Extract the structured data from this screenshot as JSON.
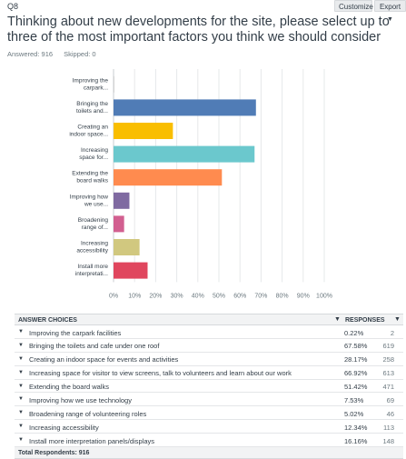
{
  "header": {
    "question_number": "Q8",
    "customize_label": "Customize",
    "export_label": "Export",
    "title": "Thinking about new developments for the site, please select up to three of the most important factors you think we should consider",
    "answered": "Answered: 916",
    "skipped": "Skipped: 0"
  },
  "chart_data": {
    "type": "bar",
    "orientation": "horizontal",
    "categories": [
      [
        "Improving the",
        "carpark..."
      ],
      [
        "Bringing the",
        "toilets and..."
      ],
      [
        "Creating an",
        "indoor space..."
      ],
      [
        "Increasing",
        "space for..."
      ],
      [
        "Extending the",
        "board walks"
      ],
      [
        "Improving how",
        "we use..."
      ],
      [
        "Broadening",
        "range of..."
      ],
      [
        "Increasing",
        "accessibility"
      ],
      [
        "Install more",
        "interpretati..."
      ]
    ],
    "values": [
      0.22,
      67.58,
      28.17,
      66.92,
      51.42,
      7.53,
      5.02,
      12.34,
      16.16
    ],
    "colors": [
      "#b8b8b8",
      "#507cb6",
      "#f9be00",
      "#6bc8cd",
      "#ff8b4f",
      "#7f6aa1",
      "#d25f90",
      "#d1c87f",
      "#e0465e"
    ],
    "xlim": [
      0,
      100
    ],
    "tick_labels": [
      "0%",
      "10%",
      "20%",
      "30%",
      "40%",
      "50%",
      "60%",
      "70%",
      "80%",
      "90%",
      "100%"
    ],
    "grid": true
  },
  "table": {
    "col_answer": "ANSWER CHOICES",
    "col_responses": "RESPONSES",
    "rows": [
      {
        "label": "Improving the carpark facilities",
        "pct": "0.22%",
        "count": "2"
      },
      {
        "label": "Bringing the toilets and cafe under one roof",
        "pct": "67.58%",
        "count": "619"
      },
      {
        "label": "Creating an indoor space for events and activities",
        "pct": "28.17%",
        "count": "258"
      },
      {
        "label": "Increasing space for visitor to view screens, talk to volunteers and learn about our work",
        "pct": "66.92%",
        "count": "613"
      },
      {
        "label": "Extending the board walks",
        "pct": "51.42%",
        "count": "471"
      },
      {
        "label": "Improving how we use technology",
        "pct": "7.53%",
        "count": "69"
      },
      {
        "label": "Broadening range of volunteering roles",
        "pct": "5.02%",
        "count": "46"
      },
      {
        "label": "Increasing accessibility",
        "pct": "12.34%",
        "count": "113"
      },
      {
        "label": "Install more interpretation panels/displays",
        "pct": "16.16%",
        "count": "148"
      }
    ],
    "total": "Total Respondents: 916"
  }
}
